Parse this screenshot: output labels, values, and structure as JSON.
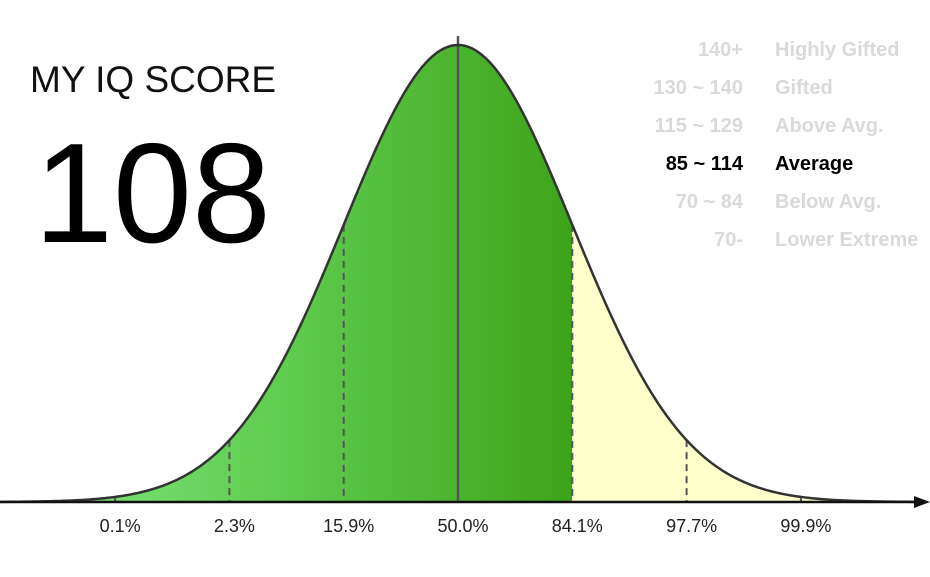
{
  "title": "MY IQ SCORE",
  "score": "108",
  "axis": {
    "labels": [
      "0.1%",
      "2.3%",
      "15.9%",
      "50.0%",
      "84.1%",
      "97.7%",
      "99.9%"
    ]
  },
  "legend": {
    "rows": [
      {
        "range": "140+",
        "label": "Highly Gifted"
      },
      {
        "range": "130 ~ 140",
        "label": "Gifted"
      },
      {
        "range": "115 ~ 129",
        "label": "Above Avg."
      },
      {
        "range": "85 ~ 114",
        "label": "Average"
      },
      {
        "range": "70 ~ 84",
        "label": "Below Avg."
      },
      {
        "range": "70-",
        "label": "Lower Extreme"
      }
    ]
  }
}
